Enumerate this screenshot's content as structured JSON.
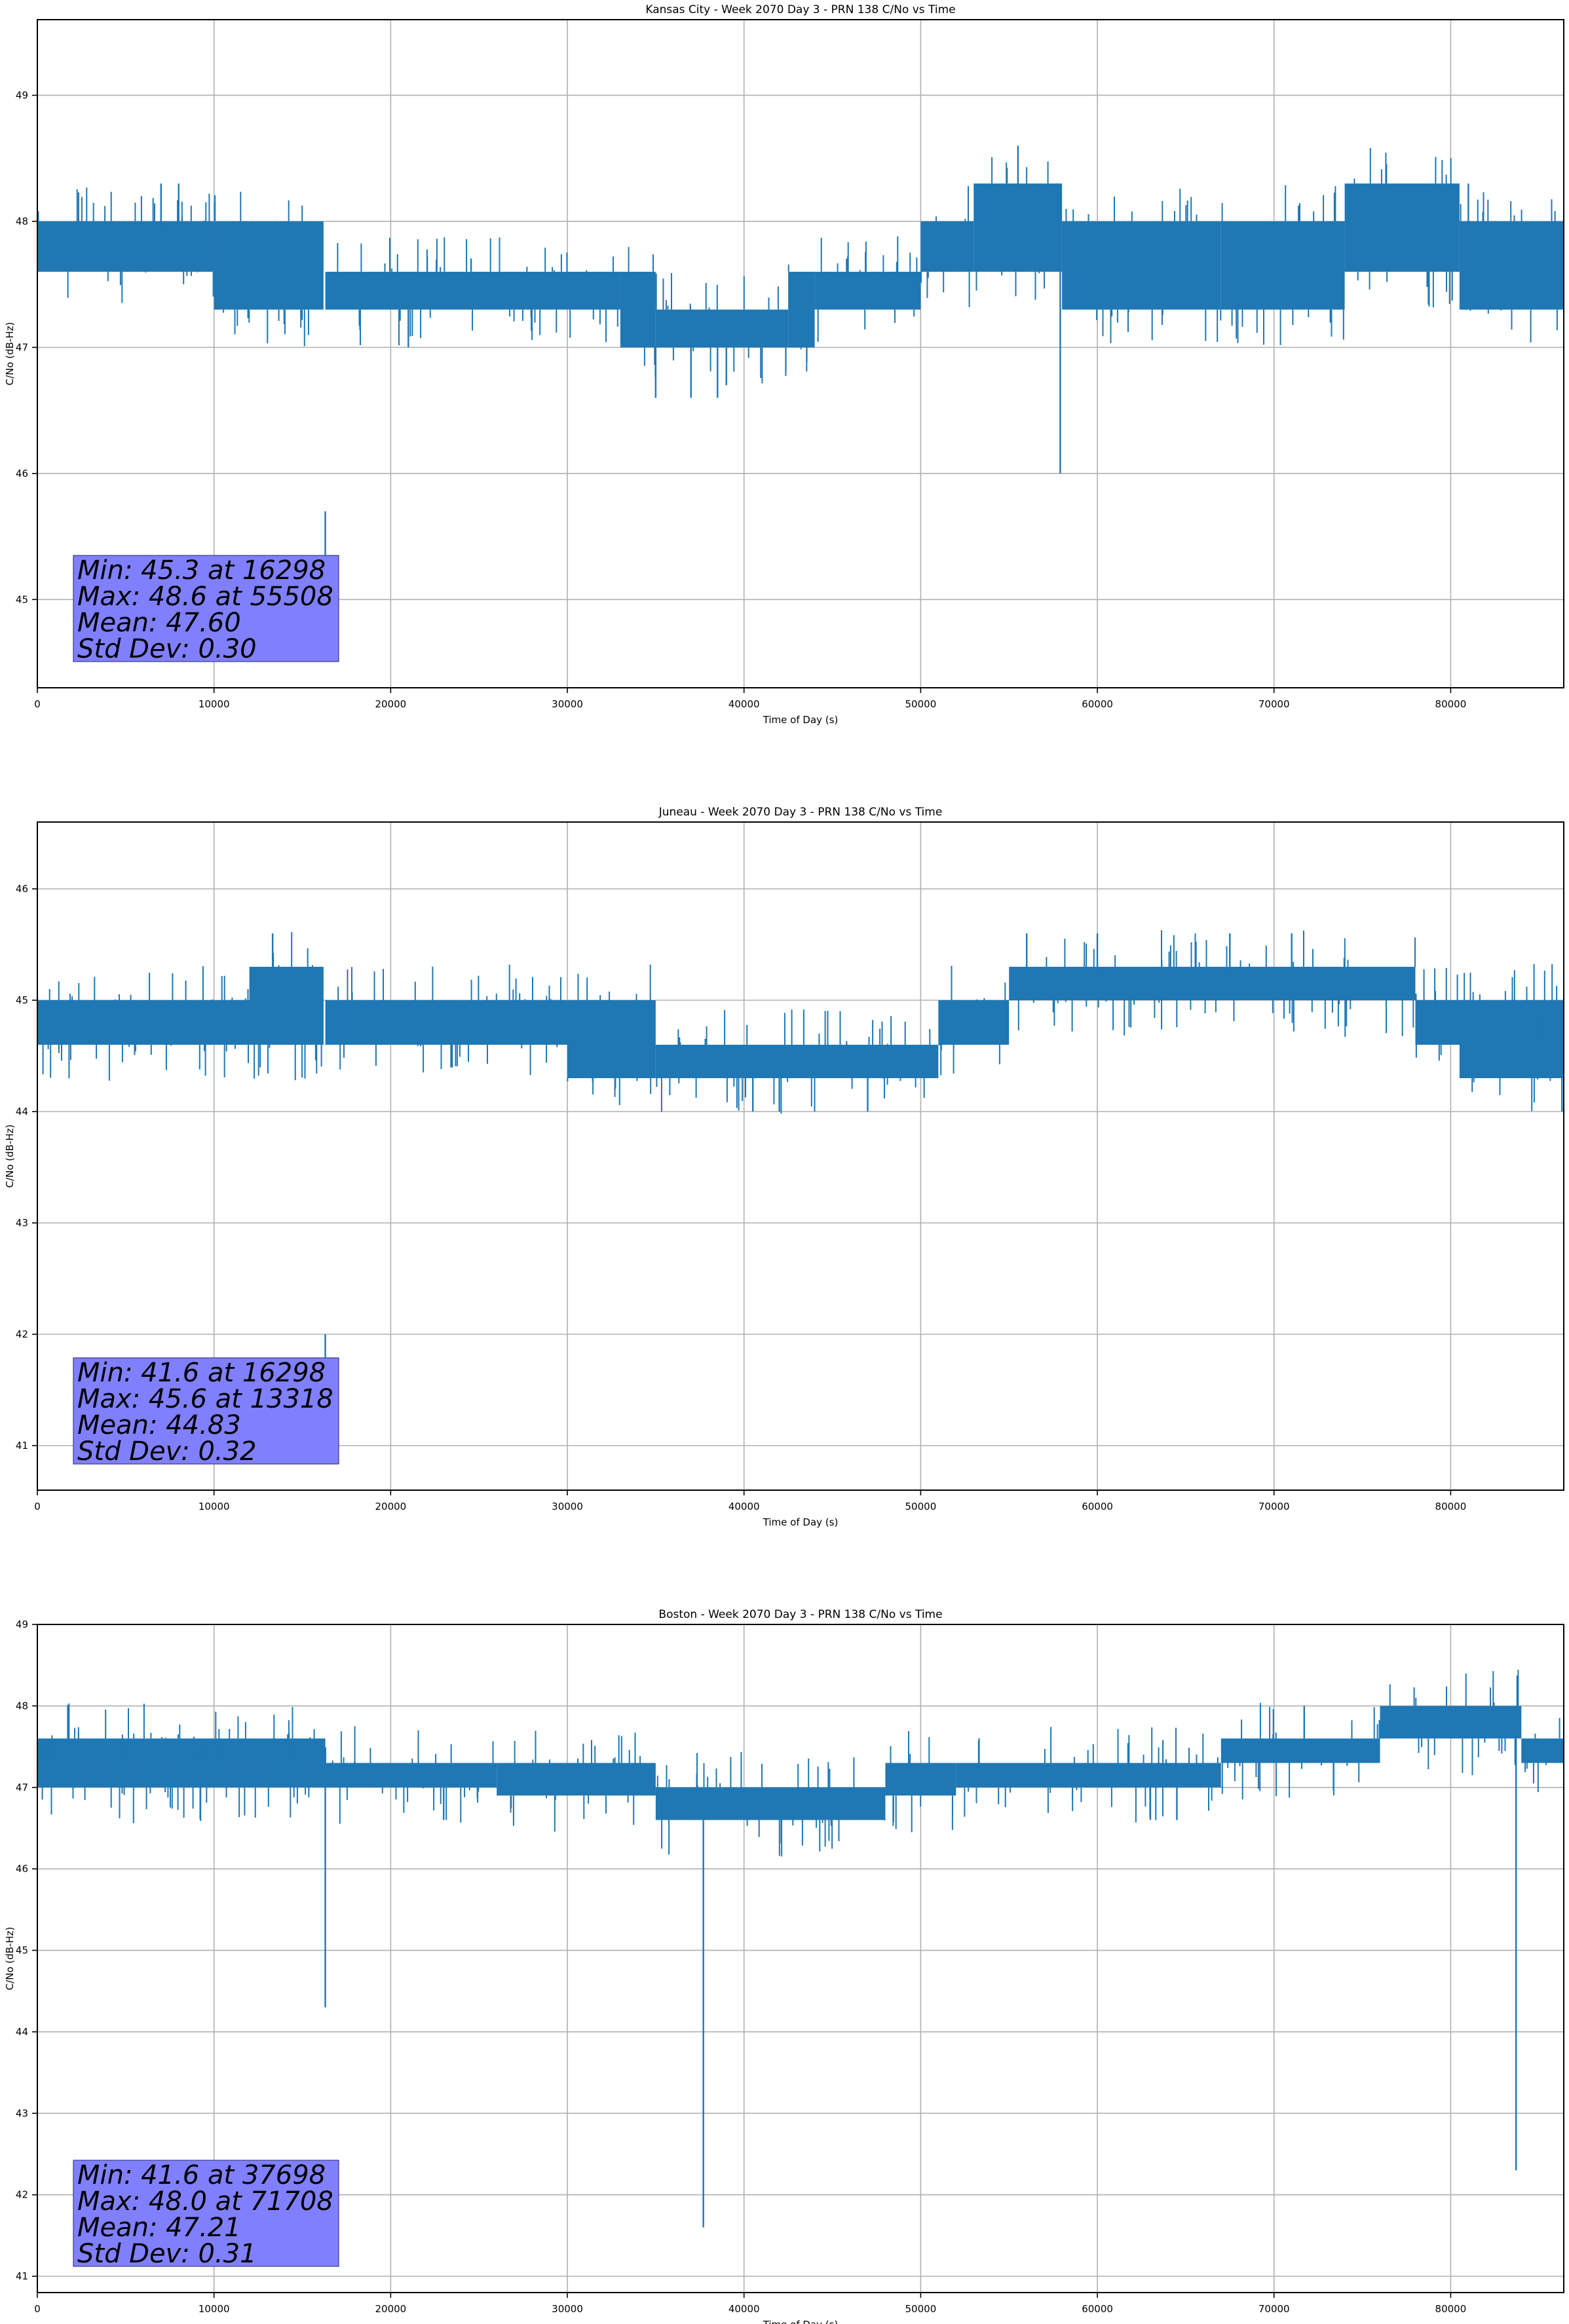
{
  "chart_data": [
    {
      "type": "line",
      "title": "Kansas City - Week 2070 Day 3 - PRN 138 C/No vs Time",
      "xlabel": "Time of Day (s)",
      "ylabel": "C/No (dB-Hz)",
      "xlim": [
        0,
        86400
      ],
      "ylim": [
        44.3,
        49.6
      ],
      "xticks": [
        0,
        10000,
        20000,
        30000,
        40000,
        50000,
        60000,
        70000,
        80000
      ],
      "yticks": [
        45,
        46,
        47,
        48,
        49
      ],
      "grid": true,
      "color": "#1f77b4",
      "segments": [
        {
          "x": [
            0,
            10000
          ],
          "band": [
            47.6,
            48.0
          ]
        },
        {
          "x": [
            10000,
            16200
          ],
          "band": [
            47.3,
            48.0
          ]
        },
        {
          "x": [
            16300,
            33000
          ],
          "band": [
            47.3,
            47.6
          ]
        },
        {
          "x": [
            33000,
            35000
          ],
          "band": [
            47.0,
            47.6
          ]
        },
        {
          "x": [
            35000,
            42500
          ],
          "band": [
            47.0,
            47.3
          ]
        },
        {
          "x": [
            42500,
            44000
          ],
          "band": [
            47.0,
            47.6
          ]
        },
        {
          "x": [
            44000,
            50000
          ],
          "band": [
            47.3,
            47.6
          ]
        },
        {
          "x": [
            50000,
            53000
          ],
          "band": [
            47.6,
            48.0
          ]
        },
        {
          "x": [
            53000,
            58000
          ],
          "band": [
            47.6,
            48.3
          ]
        },
        {
          "x": [
            58000,
            67000
          ],
          "band": [
            47.3,
            48.0
          ]
        },
        {
          "x": [
            67000,
            74000
          ],
          "band": [
            47.3,
            48.0
          ]
        },
        {
          "x": [
            74000,
            80500
          ],
          "band": [
            47.6,
            48.3
          ]
        },
        {
          "x": [
            80500,
            86400
          ],
          "band": [
            47.3,
            48.0
          ]
        }
      ],
      "spikes": [
        {
          "x": 16298,
          "y": 45.3
        },
        {
          "x": 55508,
          "y": 48.6
        },
        {
          "x": 57900,
          "y": 46.0
        },
        {
          "x": 35000,
          "y": 46.6
        },
        {
          "x": 37000,
          "y": 46.6
        },
        {
          "x": 38500,
          "y": 46.6
        },
        {
          "x": 39000,
          "y": 46.7
        },
        {
          "x": 7000,
          "y": 48.3
        },
        {
          "x": 8000,
          "y": 48.3
        },
        {
          "x": 21000,
          "y": 47.0
        },
        {
          "x": 81000,
          "y": 48.3
        }
      ],
      "stats": [
        "Min: 45.3 at 16298",
        "Max: 48.6 at 55508",
        "Mean: 47.60",
        "Std Dev: 0.30"
      ]
    },
    {
      "type": "line",
      "title": "Juneau - Week 2070 Day 3 - PRN 138 C/No vs Time",
      "xlabel": "Time of Day (s)",
      "ylabel": "C/No (dB-Hz)",
      "xlim": [
        0,
        86400
      ],
      "ylim": [
        40.6,
        46.6
      ],
      "xticks": [
        0,
        10000,
        20000,
        30000,
        40000,
        50000,
        60000,
        70000,
        80000
      ],
      "yticks": [
        41,
        42,
        43,
        44,
        45,
        46
      ],
      "grid": true,
      "color": "#1f77b4",
      "segments": [
        {
          "x": [
            0,
            16200
          ],
          "band": [
            44.6,
            45.0
          ]
        },
        {
          "x": [
            12000,
            16200
          ],
          "band": [
            44.6,
            45.3
          ]
        },
        {
          "x": [
            16300,
            30000
          ],
          "band": [
            44.6,
            45.0
          ]
        },
        {
          "x": [
            30000,
            35000
          ],
          "band": [
            44.3,
            45.0
          ]
        },
        {
          "x": [
            35000,
            51000
          ],
          "band": [
            44.3,
            44.6
          ]
        },
        {
          "x": [
            51000,
            55000
          ],
          "band": [
            44.6,
            45.0
          ]
        },
        {
          "x": [
            55000,
            78000
          ],
          "band": [
            45.0,
            45.3
          ]
        },
        {
          "x": [
            78000,
            86400
          ],
          "band": [
            44.6,
            45.0
          ]
        },
        {
          "x": [
            80500,
            86400
          ],
          "band": [
            44.3,
            44.6
          ]
        }
      ],
      "spikes": [
        {
          "x": 16298,
          "y": 41.6
        },
        {
          "x": 13318,
          "y": 45.6
        },
        {
          "x": 86300,
          "y": 44.0
        },
        {
          "x": 40500,
          "y": 44.0
        },
        {
          "x": 42000,
          "y": 44.0
        },
        {
          "x": 47000,
          "y": 44.0
        },
        {
          "x": 56000,
          "y": 45.6
        },
        {
          "x": 60000,
          "y": 45.6
        },
        {
          "x": 67500,
          "y": 45.6
        },
        {
          "x": 71000,
          "y": 45.6
        }
      ],
      "stats": [
        "Min: 41.6 at 16298",
        "Max: 45.6 at 13318",
        "Mean: 44.83",
        "Std Dev: 0.32"
      ]
    },
    {
      "type": "line",
      "title": "Boston - Week 2070 Day 3 - PRN 138 C/No vs Time",
      "xlabel": "Time of Day (s)",
      "ylabel": "C/No (dB-Hz)",
      "xlim": [
        0,
        86400
      ],
      "ylim": [
        40.8,
        49.0
      ],
      "xticks": [
        0,
        10000,
        20000,
        30000,
        40000,
        50000,
        60000,
        70000,
        80000
      ],
      "yticks": [
        41,
        42,
        43,
        44,
        45,
        46,
        47,
        48,
        49
      ],
      "grid": true,
      "color": "#1f77b4",
      "segments": [
        {
          "x": [
            0,
            16300
          ],
          "band": [
            47.3,
            47.6
          ]
        },
        {
          "x": [
            0,
            16300
          ],
          "band": [
            47.0,
            47.3
          ]
        },
        {
          "x": [
            16300,
            26000
          ],
          "band": [
            47.0,
            47.3
          ]
        },
        {
          "x": [
            26000,
            35000
          ],
          "band": [
            46.9,
            47.3
          ]
        },
        {
          "x": [
            35000,
            48000
          ],
          "band": [
            46.6,
            47.0
          ]
        },
        {
          "x": [
            48000,
            52000
          ],
          "band": [
            46.9,
            47.3
          ]
        },
        {
          "x": [
            52000,
            67000
          ],
          "band": [
            47.0,
            47.3
          ]
        },
        {
          "x": [
            67000,
            76000
          ],
          "band": [
            47.3,
            47.6
          ]
        },
        {
          "x": [
            76000,
            84000
          ],
          "band": [
            47.6,
            48.0
          ]
        },
        {
          "x": [
            84000,
            86400
          ],
          "band": [
            47.3,
            47.6
          ]
        }
      ],
      "spikes": [
        {
          "x": 16298,
          "y": 44.3
        },
        {
          "x": 37698,
          "y": 41.6
        },
        {
          "x": 83700,
          "y": 42.3
        },
        {
          "x": 71708,
          "y": 48.0
        },
        {
          "x": 23000,
          "y": 46.6
        },
        {
          "x": 63000,
          "y": 46.6
        },
        {
          "x": 64500,
          "y": 46.6
        }
      ],
      "stats": [
        "Min: 41.6 at 37698",
        "Max: 48.0 at 71708",
        "Mean: 47.21",
        "Std Dev: 0.31"
      ]
    }
  ]
}
